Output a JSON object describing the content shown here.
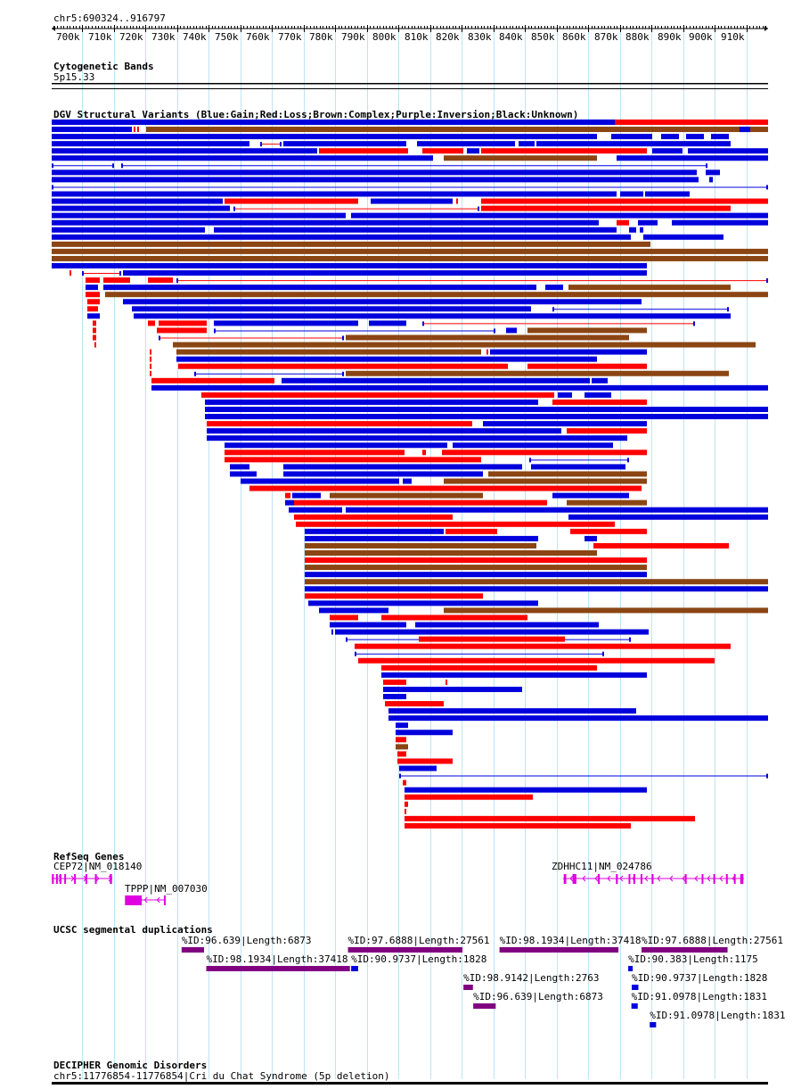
{
  "region_label": "chr5:690324..916797",
  "ruler": {
    "kb_min": 690.324,
    "kb_max": 916.797,
    "ticks": [
      "700k",
      "710k",
      "720k",
      "730k",
      "740k",
      "750k",
      "760k",
      "770k",
      "780k",
      "790k",
      "800k",
      "810k",
      "820k",
      "830k",
      "840k",
      "850k",
      "860k",
      "870k",
      "880k",
      "890k",
      "900k",
      "910k"
    ]
  },
  "cyto": {
    "title": "Cytogenetic Bands",
    "band": "5p15.33"
  },
  "dgv": {
    "title": "DGV Structural Variants (Blue:Gain;Red:Loss;Brown:Complex;Purple:Inversion;Black:Unknown)",
    "colors": {
      "gain": "#0000dd",
      "loss": "#ff0000",
      "complex": "#8b4513",
      "inversion": "#800080",
      "unknown": "#000000"
    }
  },
  "refseq": {
    "title": "RefSeq Genes",
    "genes": [
      {
        "label": "CEP72|NM_018140",
        "start": 690.3,
        "end": 709.5,
        "strand": "+",
        "exons": [
          [
            690.4,
            691.0
          ],
          [
            691.7,
            692.2
          ],
          [
            692.8,
            693.4
          ],
          [
            694.3,
            694.8
          ],
          [
            697.4,
            697.9
          ],
          [
            701.0,
            701.5
          ],
          [
            704.0,
            704.5
          ],
          [
            708.7,
            709.4
          ]
        ]
      },
      {
        "label": "TPPP|NM_007030",
        "start": 713.5,
        "end": 726.2,
        "strand": "-",
        "exons": [
          [
            713.5,
            718.8
          ],
          [
            725.8,
            726.2
          ]
        ]
      },
      {
        "label": "ZDHHC11|NM_024786",
        "start": 852.0,
        "end": 909.2,
        "strand": "-",
        "exons": [
          [
            852.2,
            853.0
          ],
          [
            855.0,
            856.2
          ],
          [
            863.0,
            863.6
          ],
          [
            868.7,
            869.3
          ],
          [
            872.7,
            873.2
          ],
          [
            874.2,
            874.8
          ],
          [
            876.5,
            877.0
          ],
          [
            880.0,
            880.6
          ],
          [
            890.5,
            891.0
          ],
          [
            895.8,
            896.3
          ],
          [
            899.5,
            900.0
          ],
          [
            903.5,
            904.0
          ],
          [
            906.0,
            906.5
          ],
          [
            908.0,
            909.0
          ]
        ]
      }
    ]
  },
  "segdups": {
    "title": "UCSC segmental duplications",
    "items": [
      {
        "label": "%ID:96.639|Length:6873",
        "start": 731.4,
        "end": 738.5,
        "row": 0,
        "color": "#800080"
      },
      {
        "label": "%ID:97.6888|Length:27561",
        "start": 784.0,
        "end": 820.2,
        "row": 0,
        "color": "#800080"
      },
      {
        "label": "%ID:98.1934|Length:37418",
        "start": 831.9,
        "end": 869.5,
        "row": 0,
        "color": "#800080"
      },
      {
        "label": "%ID:97.6888|Length:27561",
        "start": 876.8,
        "end": 904.0,
        "row": 0,
        "color": "#800080"
      },
      {
        "label": "%ID:98.1934|Length:37418",
        "start": 739.2,
        "end": 784.6,
        "row": 1,
        "color": "#800080"
      },
      {
        "label": "%ID:90.9737|Length:1828",
        "start": 785.0,
        "end": 787.2,
        "row": 1,
        "color": "#0000dd"
      },
      {
        "label": "%ID:90.383|Length:1175",
        "start": 872.6,
        "end": 874.0,
        "row": 1,
        "color": "#0000dd"
      },
      {
        "label": "%ID:98.9142|Length:2763",
        "start": 820.5,
        "end": 823.5,
        "row": 2,
        "color": "#800080"
      },
      {
        "label": "%ID:90.9737|Length:1828",
        "start": 873.7,
        "end": 875.8,
        "row": 2,
        "color": "#0000dd"
      },
      {
        "label": "%ID:96.639|Length:6873",
        "start": 823.6,
        "end": 830.7,
        "row": 3,
        "color": "#800080"
      },
      {
        "label": "%ID:91.0978|Length:1831",
        "start": 873.6,
        "end": 875.6,
        "row": 3,
        "color": "#0000dd"
      },
      {
        "label": "%ID:91.0978|Length:1831",
        "start": 879.4,
        "end": 881.4,
        "row": 4,
        "color": "#0000dd"
      }
    ]
  },
  "decipher": {
    "title": "DECIPHER Genomic Disorders",
    "label": "chr5:11776854-11776854|Cri du Chat Syndrome (5p deletion)"
  }
}
